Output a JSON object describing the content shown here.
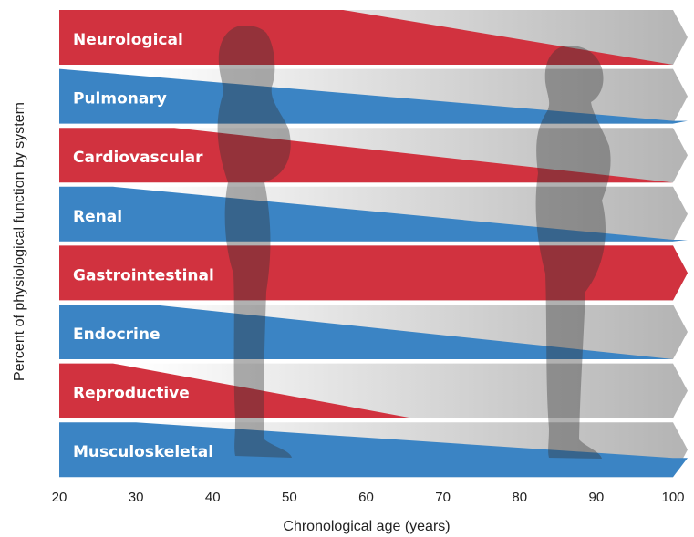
{
  "chart_data": {
    "type": "band-decline",
    "x_label": "Chronological age (years)",
    "y_label": "Percent of physiological function by system",
    "xlim": [
      20,
      100
    ],
    "xticks": [
      20,
      30,
      40,
      50,
      60,
      70,
      80,
      90,
      100
    ],
    "ylim": [
      0,
      100
    ],
    "series": [
      {
        "name": "Neurological",
        "color": "#d1323f",
        "x": [
          20,
          57,
          100
        ],
        "values": [
          100,
          100,
          0
        ]
      },
      {
        "name": "Pulmonary",
        "color": "#3b84c4",
        "x": [
          20,
          100
        ],
        "values": [
          100,
          5
        ]
      },
      {
        "name": "Cardiovascular",
        "color": "#d1323f",
        "x": [
          20,
          35,
          100
        ],
        "values": [
          100,
          100,
          0
        ]
      },
      {
        "name": "Renal",
        "color": "#3b84c4",
        "x": [
          20,
          27,
          100
        ],
        "values": [
          100,
          100,
          3
        ]
      },
      {
        "name": "Gastrointestinal",
        "color": "#d1323f",
        "x": [
          20,
          100
        ],
        "values": [
          100,
          100
        ]
      },
      {
        "name": "Endocrine",
        "color": "#3b84c4",
        "x": [
          20,
          32,
          100
        ],
        "values": [
          100,
          100,
          0
        ]
      },
      {
        "name": "Reproductive",
        "color": "#d1323f",
        "x": [
          20,
          27,
          66
        ],
        "values": [
          100,
          100,
          0
        ]
      },
      {
        "name": "Musculoskeletal",
        "color": "#3b84c4",
        "x": [
          20,
          30,
          100
        ],
        "values": [
          100,
          100,
          35
        ]
      }
    ]
  }
}
